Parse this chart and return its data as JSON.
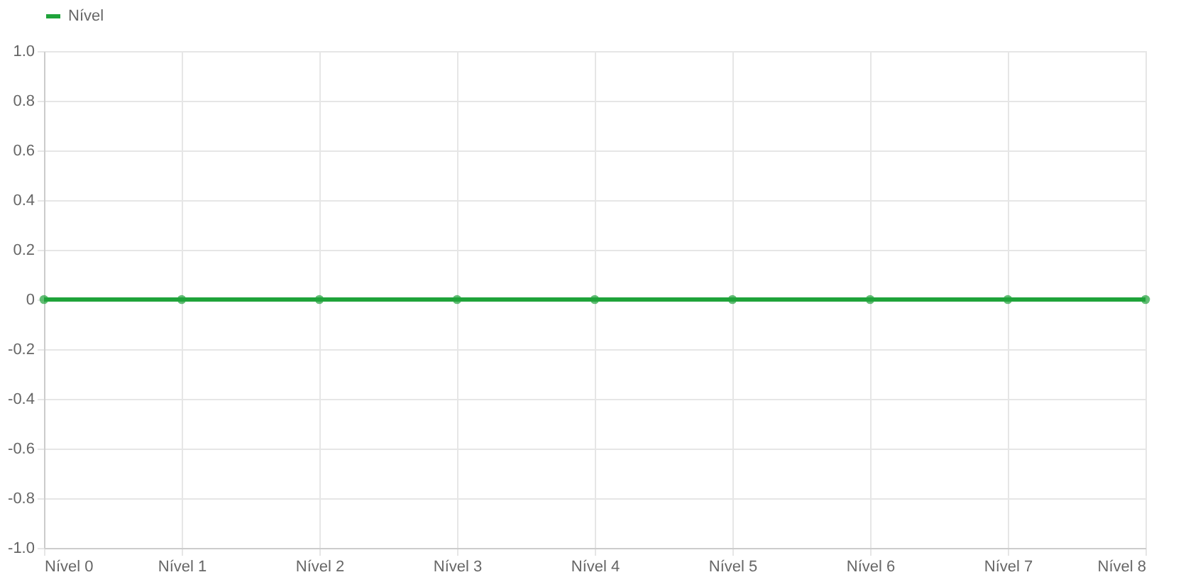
{
  "chart_data": {
    "type": "line",
    "categories": [
      "Nível 0",
      "Nível 1",
      "Nível 2",
      "Nível 3",
      "Nível 4",
      "Nível 5",
      "Nível 6",
      "Nível 7",
      "Nível 8"
    ],
    "series": [
      {
        "name": "Nível",
        "color": "#1fa33a",
        "values": [
          0,
          0,
          0,
          0,
          0,
          0,
          0,
          0,
          0
        ]
      }
    ],
    "ylim": [
      -1,
      1
    ],
    "yticks": [
      {
        "value": -1,
        "label": "-1.0"
      },
      -0.8,
      -0.6,
      -0.4,
      -0.2,
      0,
      0.2,
      0.4,
      0.6,
      0.8,
      {
        "value": 1,
        "label": "1.0"
      }
    ],
    "grid": true,
    "legend": "top",
    "marker": "circle",
    "line_style": "solid"
  }
}
